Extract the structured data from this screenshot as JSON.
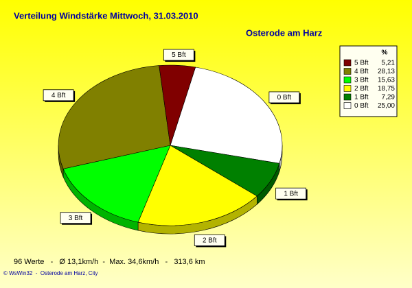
{
  "chart_data": {
    "type": "pie3d",
    "title": "Verteilung Windstärke  Mittwoch, 31.03.2010",
    "subtitle": "Osterode am Harz",
    "legend_header": "%",
    "categories": [
      "5 Bft",
      "4 Bft",
      "3 Bft",
      "2 Bft",
      "1 Bft",
      "0 Bft"
    ],
    "values": [
      5.21,
      28.13,
      15.63,
      18.75,
      7.29,
      25.0
    ],
    "value_labels": [
      "5,21",
      "28,13",
      "15,63",
      "18,75",
      "7,29",
      "25,00"
    ],
    "colors": [
      "#800000",
      "#808000",
      "#00ff00",
      "#ffff00",
      "#008000",
      "#ffffff"
    ],
    "legend": "upper right",
    "footer": "96 Werte   -   Ø 13,1km/h  -  Max. 34,6km/h   -   313,6 km",
    "credit": "© WsWin32  -  Osterode am Harz, City"
  }
}
